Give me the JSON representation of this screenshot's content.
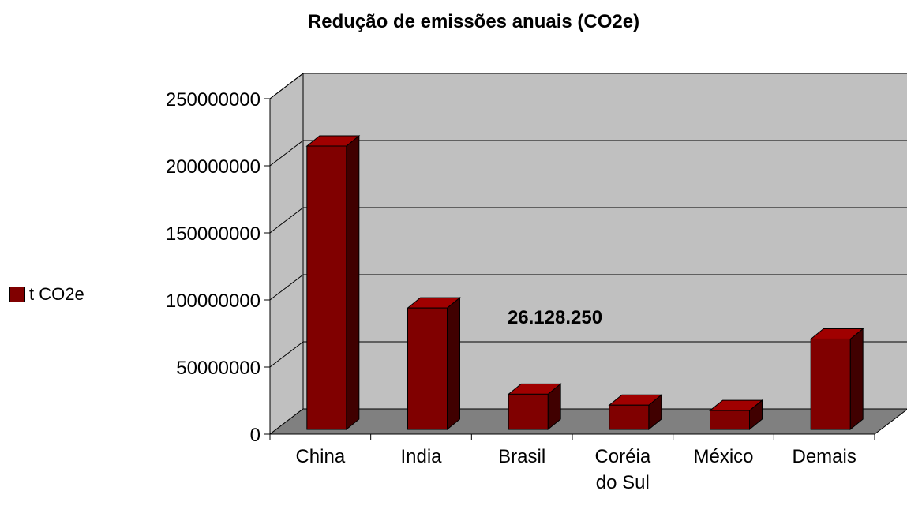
{
  "chart_data": {
    "type": "bar",
    "title": "Redução de emissões anuais (CO2e)",
    "categories": [
      "China",
      "India",
      "Brasil",
      "Coréia do Sul",
      "México",
      "Demais"
    ],
    "series": [
      {
        "name": "t CO2e",
        "values": [
          210000000,
          90000000,
          26128250,
          18000000,
          14000000,
          67000000
        ]
      }
    ],
    "ylim": [
      0,
      250000000
    ],
    "yticks": [
      "0",
      "50000000",
      "100000000",
      "150000000",
      "200000000",
      "250000000"
    ],
    "annotation": "26.128.250",
    "grid": true,
    "legend_position": "left",
    "colors": {
      "bar_front": "#800000",
      "bar_side": "#400000",
      "bar_top": "#a00000",
      "wall": "#c0c0c0",
      "floor": "#808080"
    }
  }
}
